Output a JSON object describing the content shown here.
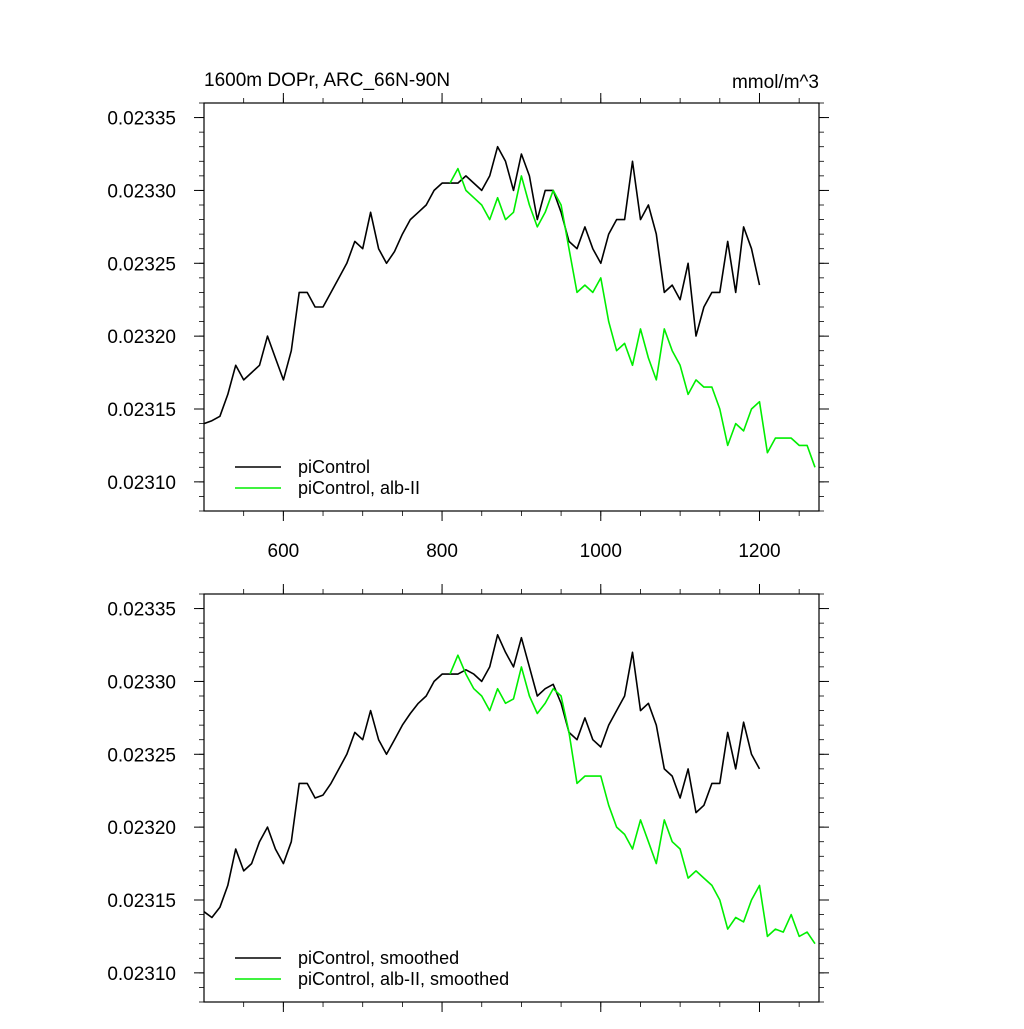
{
  "chart_data": [
    {
      "type": "line",
      "title_left": "1600m DOPr, ARC_66N-90N",
      "title_right": "mmol/m^3",
      "xlim": [
        500,
        1275
      ],
      "ylim": [
        0.02308,
        0.02336
      ],
      "x_ticks": [
        600,
        800,
        1000,
        1200
      ],
      "x_tick_labels": [
        "600",
        "800",
        "1000",
        "1200"
      ],
      "y_ticks": [
        0.0231,
        0.02315,
        0.0232,
        0.02325,
        0.0233,
        0.02335
      ],
      "y_tick_labels": [
        "0.02310",
        "0.02315",
        "0.02320",
        "0.02325",
        "0.02330",
        "0.02335"
      ],
      "legend_placement": "bottom-left",
      "grid": false,
      "series": [
        {
          "name": "piControl",
          "color": "#000000",
          "x": [
            500,
            510,
            520,
            530,
            540,
            550,
            560,
            570,
            580,
            590,
            600,
            610,
            620,
            630,
            640,
            650,
            660,
            670,
            680,
            690,
            700,
            710,
            720,
            730,
            740,
            750,
            760,
            770,
            780,
            790,
            800,
            810,
            820,
            830,
            840,
            850,
            860,
            870,
            880,
            890,
            900,
            910,
            920,
            930,
            940,
            950,
            960,
            970,
            980,
            990,
            1000,
            1010,
            1020,
            1030,
            1040,
            1050,
            1060,
            1070,
            1080,
            1090,
            1100,
            1110,
            1120,
            1130,
            1140,
            1150,
            1160,
            1170,
            1180,
            1190,
            1200
          ],
          "y": [
            0.02314,
            0.023142,
            0.023145,
            0.02316,
            0.02318,
            0.02317,
            0.023175,
            0.02318,
            0.0232,
            0.023185,
            0.02317,
            0.02319,
            0.02323,
            0.02323,
            0.02322,
            0.02322,
            0.02323,
            0.02324,
            0.02325,
            0.023265,
            0.02326,
            0.023285,
            0.02326,
            0.02325,
            0.023258,
            0.02327,
            0.02328,
            0.023285,
            0.02329,
            0.0233,
            0.023305,
            0.023305,
            0.023305,
            0.02331,
            0.023305,
            0.0233,
            0.02331,
            0.02333,
            0.02332,
            0.0233,
            0.023325,
            0.02331,
            0.02328,
            0.0233,
            0.0233,
            0.023285,
            0.023265,
            0.02326,
            0.023275,
            0.02326,
            0.02325,
            0.02327,
            0.02328,
            0.02328,
            0.02332,
            0.02328,
            0.02329,
            0.02327,
            0.02323,
            0.023235,
            0.023225,
            0.02325,
            0.0232,
            0.02322,
            0.02323,
            0.02323,
            0.023265,
            0.02323,
            0.023275,
            0.02326,
            0.023235
          ]
        },
        {
          "name": "piControl, alb-II",
          "color": "#00ee00",
          "x": [
            810,
            820,
            830,
            840,
            850,
            860,
            870,
            880,
            890,
            900,
            910,
            920,
            930,
            940,
            950,
            960,
            970,
            980,
            990,
            1000,
            1010,
            1020,
            1030,
            1040,
            1050,
            1060,
            1070,
            1080,
            1090,
            1100,
            1110,
            1120,
            1130,
            1140,
            1150,
            1160,
            1170,
            1180,
            1190,
            1200,
            1210,
            1220,
            1230,
            1240,
            1250,
            1260,
            1270
          ],
          "y": [
            0.023305,
            0.023315,
            0.0233,
            0.023295,
            0.02329,
            0.02328,
            0.023295,
            0.02328,
            0.023285,
            0.02331,
            0.02329,
            0.023275,
            0.023285,
            0.0233,
            0.02329,
            0.02326,
            0.02323,
            0.023235,
            0.02323,
            0.02324,
            0.02321,
            0.02319,
            0.023195,
            0.02318,
            0.023205,
            0.023185,
            0.02317,
            0.023205,
            0.02319,
            0.02318,
            0.02316,
            0.02317,
            0.023165,
            0.023165,
            0.02315,
            0.023125,
            0.02314,
            0.023135,
            0.02315,
            0.023155,
            0.02312,
            0.02313,
            0.02313,
            0.02313,
            0.023125,
            0.023125,
            0.02311
          ]
        }
      ]
    },
    {
      "type": "line",
      "xlim": [
        500,
        1275
      ],
      "ylim": [
        0.02308,
        0.02336
      ],
      "x_ticks": [
        600,
        800,
        1000,
        1200
      ],
      "y_ticks": [
        0.0231,
        0.02315,
        0.0232,
        0.02325,
        0.0233,
        0.02335
      ],
      "y_tick_labels": [
        "0.02310",
        "0.02315",
        "0.02320",
        "0.02325",
        "0.02330",
        "0.02335"
      ],
      "legend_placement": "bottom-left",
      "grid": false,
      "series": [
        {
          "name": "piControl, smoothed",
          "color": "#000000",
          "x": [
            500,
            510,
            520,
            530,
            540,
            550,
            560,
            570,
            580,
            590,
            600,
            610,
            620,
            630,
            640,
            650,
            660,
            670,
            680,
            690,
            700,
            710,
            720,
            730,
            740,
            750,
            760,
            770,
            780,
            790,
            800,
            810,
            820,
            830,
            840,
            850,
            860,
            870,
            880,
            890,
            900,
            910,
            920,
            930,
            940,
            950,
            960,
            970,
            980,
            990,
            1000,
            1010,
            1020,
            1030,
            1040,
            1050,
            1060,
            1070,
            1080,
            1090,
            1100,
            1110,
            1120,
            1130,
            1140,
            1150,
            1160,
            1170,
            1180,
            1190,
            1200
          ],
          "y": [
            0.023142,
            0.023138,
            0.023145,
            0.02316,
            0.023185,
            0.02317,
            0.023175,
            0.02319,
            0.0232,
            0.023185,
            0.023175,
            0.02319,
            0.02323,
            0.02323,
            0.02322,
            0.023222,
            0.02323,
            0.02324,
            0.02325,
            0.023265,
            0.02326,
            0.02328,
            0.02326,
            0.02325,
            0.02326,
            0.02327,
            0.023278,
            0.023285,
            0.02329,
            0.0233,
            0.023305,
            0.023305,
            0.023305,
            0.023308,
            0.023305,
            0.0233,
            0.02331,
            0.023332,
            0.02332,
            0.02331,
            0.02333,
            0.02331,
            0.02329,
            0.023295,
            0.023298,
            0.023285,
            0.023265,
            0.02326,
            0.023275,
            0.02326,
            0.023255,
            0.02327,
            0.02328,
            0.02329,
            0.02332,
            0.02328,
            0.023285,
            0.02327,
            0.02324,
            0.023235,
            0.02322,
            0.02324,
            0.02321,
            0.023215,
            0.02323,
            0.02323,
            0.023265,
            0.02324,
            0.023272,
            0.02325,
            0.02324
          ]
        },
        {
          "name": "piControl, alb-II, smoothed",
          "color": "#00ee00",
          "x": [
            810,
            820,
            830,
            840,
            850,
            860,
            870,
            880,
            890,
            900,
            910,
            920,
            930,
            940,
            950,
            960,
            970,
            980,
            990,
            1000,
            1010,
            1020,
            1030,
            1040,
            1050,
            1060,
            1070,
            1080,
            1090,
            1100,
            1110,
            1120,
            1130,
            1140,
            1150,
            1160,
            1170,
            1180,
            1190,
            1200,
            1210,
            1220,
            1230,
            1240,
            1250,
            1260,
            1270
          ],
          "y": [
            0.023305,
            0.023318,
            0.023305,
            0.023295,
            0.02329,
            0.02328,
            0.023295,
            0.023285,
            0.023288,
            0.02331,
            0.02329,
            0.023278,
            0.023285,
            0.023295,
            0.02329,
            0.023265,
            0.02323,
            0.023235,
            0.023235,
            0.023235,
            0.023215,
            0.0232,
            0.023195,
            0.023185,
            0.023205,
            0.02319,
            0.023175,
            0.023205,
            0.02319,
            0.023185,
            0.023165,
            0.02317,
            0.023165,
            0.02316,
            0.02315,
            0.02313,
            0.023138,
            0.023135,
            0.02315,
            0.02316,
            0.023125,
            0.02313,
            0.023128,
            0.02314,
            0.023125,
            0.023128,
            0.02312
          ]
        }
      ]
    }
  ]
}
